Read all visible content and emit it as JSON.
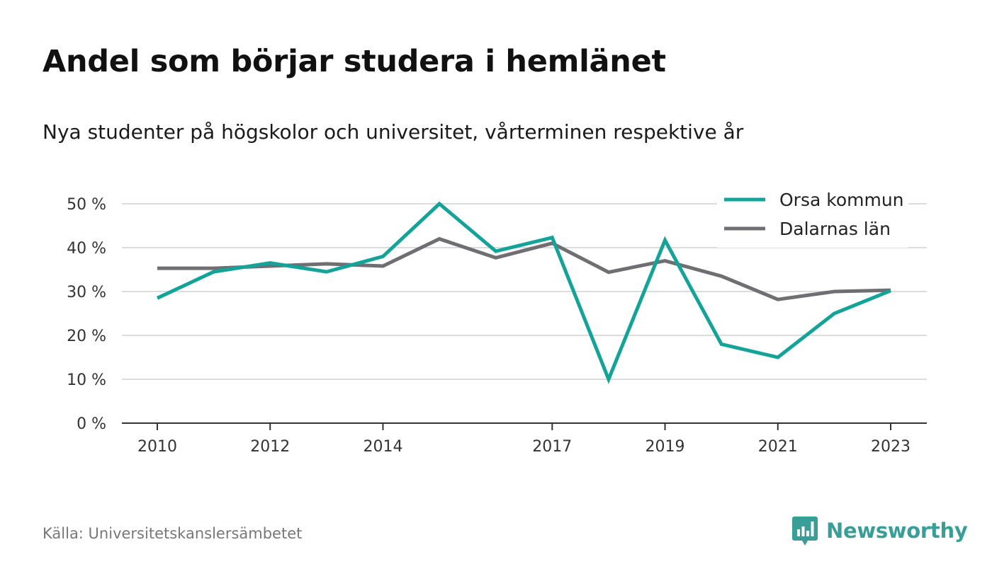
{
  "chart_data": {
    "type": "line",
    "title": "Andel som börjar studera i hemlänet",
    "subtitle": "Nya studenter på högskolor och universitet, vårterminen respektive år",
    "x": [
      2010,
      2011,
      2012,
      2013,
      2014,
      2015,
      2016,
      2017,
      2018,
      2019,
      2020,
      2021,
      2022,
      2023
    ],
    "x_ticks": [
      2010,
      2012,
      2014,
      2017,
      2019,
      2021,
      2023
    ],
    "y_ticks": [
      0,
      10,
      20,
      30,
      40,
      50
    ],
    "y_tick_labels": [
      "0 %",
      "10 %",
      "20 %",
      "30 %",
      "40 %",
      "50 %"
    ],
    "ylim": [
      0,
      50
    ],
    "grid": true,
    "legend_position": "top-right",
    "series": [
      {
        "name": "Orsa kommun",
        "color": "#14a398",
        "values": [
          28.5,
          34.5,
          36.5,
          34.5,
          38,
          50,
          39.2,
          42.3,
          10,
          41.7,
          18,
          15,
          25,
          30.2
        ]
      },
      {
        "name": "Dalarnas län",
        "color": "#6f6e73",
        "values": [
          35.3,
          35.3,
          35.8,
          36.3,
          35.8,
          42,
          37.7,
          41,
          34.4,
          37,
          33.5,
          28.2,
          30,
          30.3
        ]
      }
    ]
  },
  "footer": {
    "source": "Källa: Universitetskanslersämbetet",
    "brand": "Newsworthy",
    "brand_color": "#3a9e98",
    "logo_icon": "bar-chart-bubble-icon"
  }
}
